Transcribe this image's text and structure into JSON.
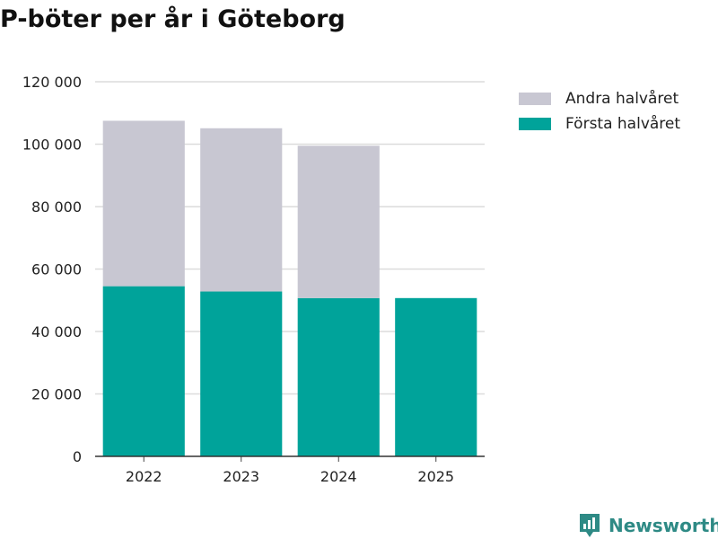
{
  "chart_data": {
    "type": "bar",
    "stacked": true,
    "title": "P-böter per år i Göteborg",
    "categories": [
      "2022",
      "2023",
      "2024",
      "2025"
    ],
    "series": [
      {
        "name": "Första halvåret",
        "color": "#00a39a",
        "values": [
          54500,
          52800,
          50700,
          50700
        ]
      },
      {
        "name": "Andra halvåret",
        "color": "#c8c7d2",
        "values": [
          53000,
          52300,
          48800,
          0
        ]
      }
    ],
    "ylim": [
      0,
      120000
    ],
    "yticks": [
      0,
      20000,
      40000,
      60000,
      80000,
      100000,
      120000
    ],
    "ytick_labels": [
      "0",
      "20 000",
      "40 000",
      "60 000",
      "80 000",
      "100 000",
      "120 000"
    ],
    "xlabel": "",
    "ylabel": "",
    "grid": true,
    "legend_position": "top-right"
  },
  "legend": [
    {
      "label": "Andra halvåret",
      "color": "#c8c7d2"
    },
    {
      "label": "Första halvåret",
      "color": "#00a39a"
    }
  ],
  "brand": {
    "name": "Newsworthy",
    "icon": "newsworthy-logo-icon",
    "color": "#2e8a85"
  }
}
